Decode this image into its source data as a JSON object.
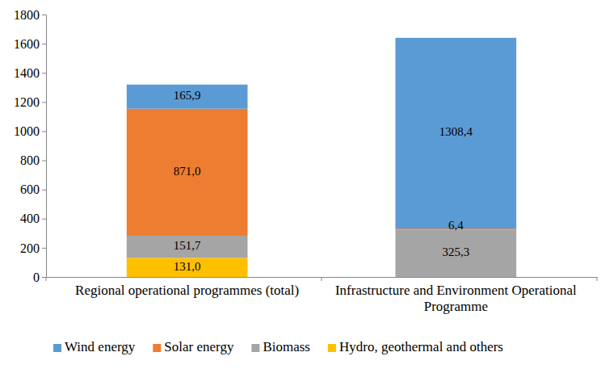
{
  "chart_data": {
    "type": "bar",
    "stacked": true,
    "data_labels": true,
    "grid": false,
    "legend": "bottom",
    "categories": [
      "Regional operational programmes (total)",
      "Infrastructure and Environment Operational Programme"
    ],
    "series": [
      {
        "name": "Wind energy",
        "color": "#5b9bd5",
        "values": [
          165.9,
          1308.4
        ],
        "value_labels": [
          "165,9",
          "1308,4"
        ]
      },
      {
        "name": "Solar energy",
        "color": "#ed7d31",
        "values": [
          871.0,
          6.4
        ],
        "value_labels": [
          "871,0",
          "6,4"
        ]
      },
      {
        "name": "Biomass",
        "color": "#a5a5a5",
        "values": [
          151.7,
          325.3
        ],
        "value_labels": [
          "151,7",
          "325,3"
        ]
      },
      {
        "name": "Hydro, geothermal and others",
        "color": "#ffc000",
        "values": [
          131.0,
          null
        ],
        "value_labels": [
          "131,0",
          null
        ]
      }
    ],
    "ylim": [
      0,
      1800
    ],
    "yticks": [
      0,
      200,
      400,
      600,
      800,
      1000,
      1200,
      1400,
      1600,
      1800
    ]
  }
}
